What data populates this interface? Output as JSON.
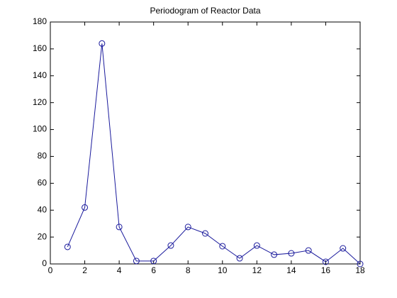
{
  "chart_data": {
    "type": "line",
    "title": "Periodogram of Reactor Data",
    "x": [
      1,
      2,
      3,
      4,
      5,
      6,
      7,
      8,
      9,
      10,
      11,
      12,
      13,
      14,
      15,
      16,
      17,
      18
    ],
    "series": [
      {
        "name": "Periodogram",
        "color": "#1a1a9c",
        "marker": "o",
        "values": [
          12.7,
          42,
          164,
          27.5,
          2.2,
          2.2,
          13.7,
          27.5,
          22.7,
          13.2,
          4.2,
          13.7,
          6.9,
          7.9,
          10,
          1.6,
          11.6,
          0
        ]
      }
    ],
    "xlim": [
      0,
      18
    ],
    "xticks": [
      0,
      2,
      4,
      6,
      8,
      10,
      12,
      14,
      16,
      18
    ],
    "ylim": [
      0,
      180
    ],
    "yticks": [
      0,
      20,
      40,
      60,
      80,
      100,
      120,
      140,
      160,
      180
    ]
  }
}
